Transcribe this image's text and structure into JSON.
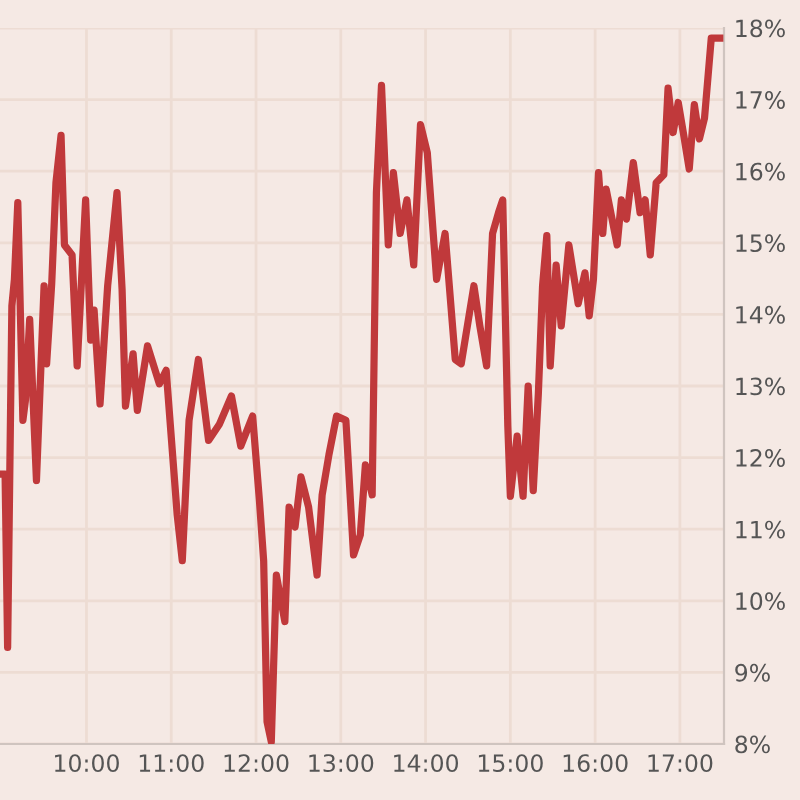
{
  "chart_data": {
    "type": "line",
    "grid": true,
    "xlim": [
      8.98,
      17.52
    ],
    "ylim": [
      8,
      18
    ],
    "xticks": [
      {
        "value": 10,
        "label": "10:00"
      },
      {
        "value": 11,
        "label": "11:00"
      },
      {
        "value": 12,
        "label": "12:00"
      },
      {
        "value": 13,
        "label": "13:00"
      },
      {
        "value": 14,
        "label": "14:00"
      },
      {
        "value": 15,
        "label": "15:00"
      },
      {
        "value": 16,
        "label": "16:00"
      },
      {
        "value": 17,
        "label": "17:00"
      }
    ],
    "yticks": [
      {
        "value": 8,
        "label": "8%"
      },
      {
        "value": 9,
        "label": "9%"
      },
      {
        "value": 10,
        "label": "10%"
      },
      {
        "value": 11,
        "label": "11%"
      },
      {
        "value": 12,
        "label": "12%"
      },
      {
        "value": 13,
        "label": "13%"
      },
      {
        "value": 14,
        "label": "14%"
      },
      {
        "value": 15,
        "label": "15%"
      },
      {
        "value": 16,
        "label": "16%"
      },
      {
        "value": 17,
        "label": "17%"
      },
      {
        "value": 18,
        "label": "18%"
      }
    ],
    "series": [
      {
        "color": "#c0393b",
        "x": [
          8.98,
          9.04,
          9.07,
          9.12,
          9.15,
          9.19,
          9.25,
          9.28,
          9.33,
          9.41,
          9.5,
          9.53,
          9.59,
          9.64,
          9.7,
          9.74,
          9.83,
          9.89,
          9.99,
          10.05,
          10.09,
          10.16,
          10.25,
          10.36,
          10.42,
          10.46,
          10.55,
          10.6,
          10.72,
          10.86,
          10.94,
          11.07,
          11.13,
          11.21,
          11.32,
          11.44,
          11.57,
          11.71,
          11.82,
          11.96,
          12.04,
          12.09,
          12.13,
          12.18,
          12.24,
          12.34,
          12.39,
          12.46,
          12.53,
          12.62,
          12.72,
          12.78,
          12.86,
          12.95,
          13.06,
          13.15,
          13.23,
          13.29,
          13.37,
          13.42,
          13.48,
          13.56,
          13.62,
          13.7,
          13.78,
          13.86,
          13.94,
          14.02,
          14.13,
          14.23,
          14.35,
          14.42,
          14.57,
          14.64,
          14.72,
          14.79,
          14.86,
          14.91,
          14.97,
          15.0,
          15.08,
          15.15,
          15.21,
          15.27,
          15.33,
          15.38,
          15.43,
          15.47,
          15.54,
          15.6,
          15.69,
          15.8,
          15.88,
          15.93,
          15.98,
          16.04,
          16.09,
          16.13,
          16.26,
          16.31,
          16.37,
          16.45,
          16.53,
          16.59,
          16.65,
          16.72,
          16.81,
          16.86,
          16.92,
          16.98,
          17.04,
          17.11,
          17.17,
          17.23,
          17.29,
          17.37,
          17.47
        ],
        "values": [
          11.77,
          11.77,
          9.35,
          14.12,
          14.49,
          15.56,
          12.52,
          12.8,
          13.93,
          11.68,
          14.4,
          13.31,
          14.43,
          15.84,
          16.5,
          14.97,
          14.83,
          13.28,
          15.6,
          13.64,
          14.06,
          12.75,
          14.4,
          15.7,
          14.35,
          12.72,
          13.45,
          12.66,
          13.56,
          13.03,
          13.22,
          11.2,
          10.56,
          12.52,
          13.37,
          12.24,
          12.47,
          12.86,
          12.16,
          12.58,
          11.4,
          10.56,
          8.31,
          8.03,
          10.36,
          9.71,
          11.31,
          11.03,
          11.73,
          11.31,
          10.36,
          11.48,
          12.04,
          12.58,
          12.52,
          10.64,
          10.92,
          11.9,
          11.48,
          15.7,
          17.2,
          14.97,
          15.98,
          15.13,
          15.6,
          14.69,
          16.65,
          16.26,
          14.49,
          15.13,
          13.37,
          13.31,
          14.4,
          13.84,
          13.28,
          15.13,
          15.42,
          15.6,
          12.44,
          11.46,
          12.3,
          11.46,
          13.0,
          11.54,
          12.89,
          14.4,
          15.1,
          13.28,
          14.69,
          13.84,
          14.97,
          14.15,
          14.58,
          13.98,
          14.49,
          15.98,
          15.13,
          15.75,
          14.97,
          15.6,
          15.33,
          16.12,
          15.42,
          15.6,
          14.83,
          15.84,
          15.95,
          17.16,
          16.54,
          16.96,
          16.54,
          16.03,
          16.93,
          16.45,
          16.74,
          17.86,
          17.86
        ]
      }
    ]
  }
}
